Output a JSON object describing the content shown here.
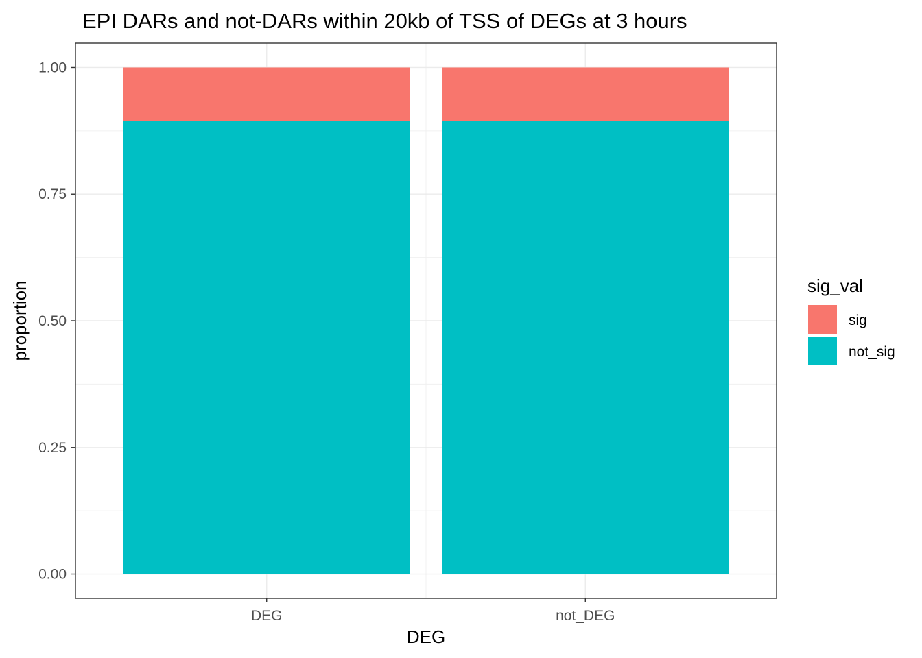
{
  "chart_data": {
    "type": "bar",
    "stacked": true,
    "title": "EPI DARs and not-DARs within 20kb of TSS of DEGs at 3 hours",
    "xlabel": "DEG",
    "ylabel": "proportion",
    "categories": [
      "DEG",
      "not_DEG"
    ],
    "series": [
      {
        "name": "not_sig",
        "values": [
          0.895,
          0.894
        ],
        "color": "#00BFC4"
      },
      {
        "name": "sig",
        "values": [
          0.105,
          0.106
        ],
        "color": "#F8766D"
      }
    ],
    "ylim": [
      -0.048,
      1.048
    ],
    "yticks": [
      0.0,
      0.25,
      0.5,
      0.75,
      1.0
    ],
    "ytick_labels": [
      "0.00",
      "0.25",
      "0.50",
      "0.75",
      "1.00"
    ],
    "grid": true,
    "legend": {
      "title": "sig_val",
      "placement": "right",
      "entries": [
        {
          "label": "sig",
          "color": "#F8766D"
        },
        {
          "label": "not_sig",
          "color": "#00BFC4"
        }
      ]
    }
  }
}
